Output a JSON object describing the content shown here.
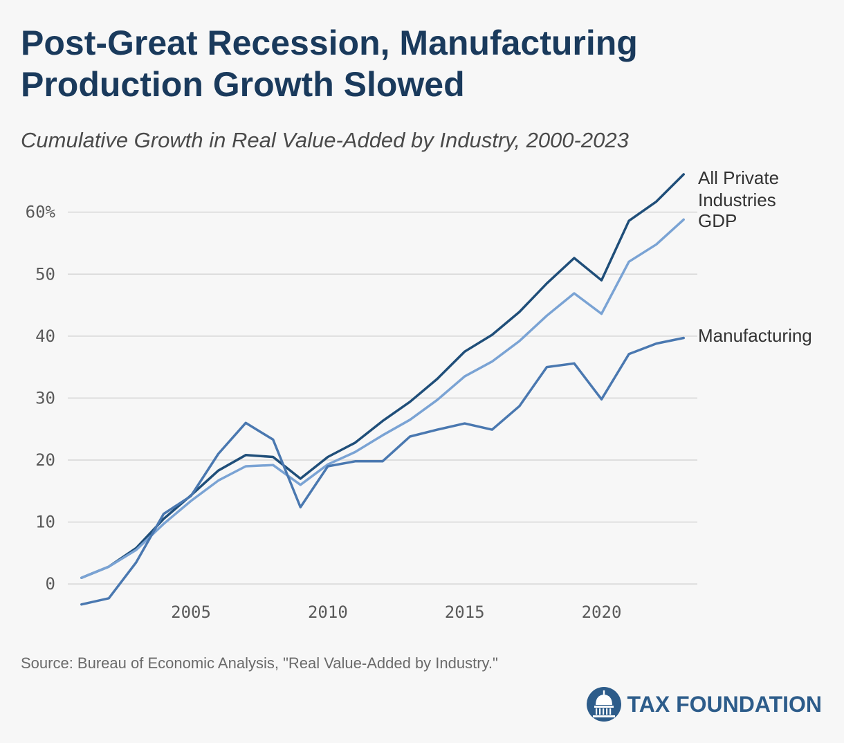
{
  "title": "Post-Great Recession, Manufacturing Production Growth Slowed",
  "subtitle": "Cumulative Growth in Real Value-Added by Industry, 2000-2023",
  "source": "Source: Bureau of Economic Analysis, \"Real Value-Added by Industry.\"",
  "brand": {
    "name": "TAX FOUNDATION",
    "color": "#2d5c8a"
  },
  "chart_data": {
    "type": "line",
    "y_ticks": [
      {
        "value": 0,
        "label": "0"
      },
      {
        "value": 10,
        "label": "10"
      },
      {
        "value": 20,
        "label": "20"
      },
      {
        "value": 30,
        "label": "30"
      },
      {
        "value": 40,
        "label": "40"
      },
      {
        "value": 50,
        "label": "50"
      },
      {
        "value": 60,
        "label": "60%"
      }
    ],
    "x_ticks": [
      {
        "value": 2005,
        "label": "2005"
      },
      {
        "value": 2010,
        "label": "2010"
      },
      {
        "value": 2015,
        "label": "2015"
      },
      {
        "value": 2020,
        "label": "2020"
      }
    ],
    "xlim": [
      2000.5,
      2023.5
    ],
    "ylim": [
      -4,
      68
    ],
    "grid": true,
    "legend": "direct-labels-right",
    "x": [
      2001,
      2002,
      2003,
      2004,
      2005,
      2006,
      2007,
      2008,
      2009,
      2010,
      2011,
      2012,
      2013,
      2014,
      2015,
      2016,
      2017,
      2018,
      2019,
      2020,
      2021,
      2022,
      2023
    ],
    "series": [
      {
        "name": "All Private Industries",
        "color": "#1f4e79",
        "values": [
          1.0,
          2.8,
          5.8,
          10.5,
          14.3,
          18.3,
          20.8,
          20.5,
          17.0,
          20.5,
          22.8,
          26.3,
          29.4,
          33.1,
          37.5,
          40.2,
          43.9,
          48.5,
          52.6,
          49.0,
          58.6,
          61.7,
          66.1
        ]
      },
      {
        "name": "GDP",
        "color": "#7aa3d4",
        "values": [
          1.0,
          2.8,
          5.5,
          9.7,
          13.4,
          16.7,
          19.0,
          19.2,
          16.0,
          19.3,
          21.3,
          24.0,
          26.5,
          29.7,
          33.5,
          35.9,
          39.2,
          43.3,
          46.9,
          43.6,
          52.0,
          54.8,
          58.8
        ]
      },
      {
        "name": "Manufacturing",
        "color": "#4a78b0",
        "values": [
          -3.3,
          -2.3,
          3.5,
          11.3,
          14.2,
          21.0,
          26.0,
          23.3,
          12.4,
          19.0,
          19.8,
          19.8,
          23.8,
          24.9,
          25.9,
          24.9,
          28.7,
          35.0,
          35.6,
          29.8,
          37.1,
          38.8,
          39.7
        ]
      }
    ]
  }
}
